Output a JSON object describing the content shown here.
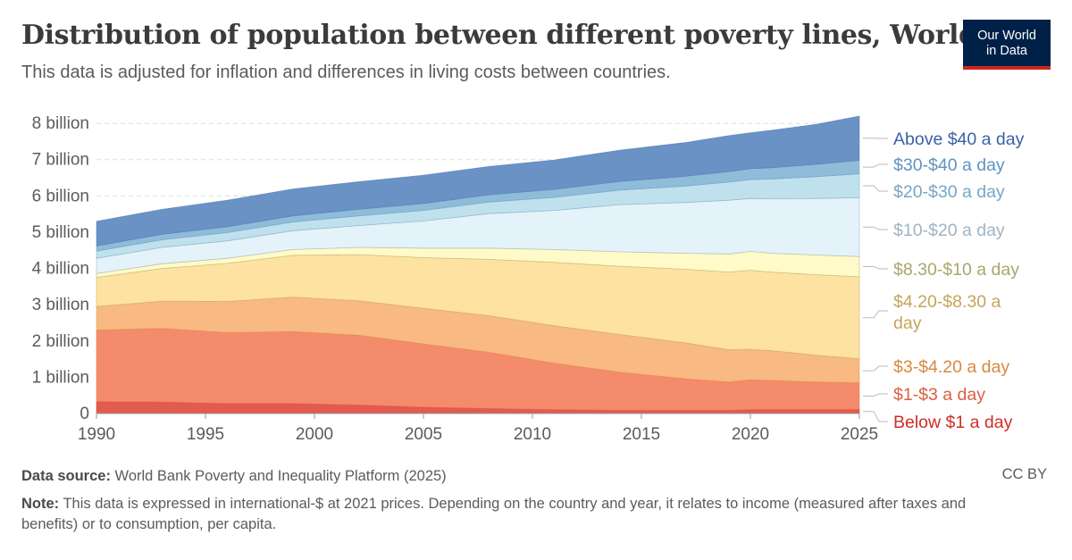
{
  "header": {
    "title": "Distribution of population between different poverty lines, World",
    "subtitle": "This data is adjusted for inflation and differences in living costs between countries."
  },
  "logo": {
    "line1": "Our World",
    "line2": "in Data"
  },
  "footer": {
    "source_label": "Data source:",
    "source_text": " World Bank Poverty and Inequality Platform (2025)",
    "license": "CC BY",
    "note_label": "Note:",
    "note_text": " This data is expressed in international-$ at 2021 prices. Depending on the country and year, it relates to income (measured after taxes and benefits) or to consumption, per capita."
  },
  "chart_data": {
    "type": "area",
    "stacked": true,
    "x": [
      1990,
      1993,
      1996,
      1999,
      2002,
      2005,
      2008,
      2011,
      2014,
      2017,
      2019,
      2020,
      2021,
      2023,
      2025
    ],
    "xticks": [
      1990,
      1995,
      2000,
      2005,
      2010,
      2015,
      2020,
      2025
    ],
    "xlim": [
      1990,
      2025
    ],
    "ylim": [
      0,
      8.2
    ],
    "yticks": [
      {
        "value": 0,
        "label": "0"
      },
      {
        "value": 1,
        "label": "1 billion"
      },
      {
        "value": 2,
        "label": "2 billion"
      },
      {
        "value": 3,
        "label": "3 billion"
      },
      {
        "value": 4,
        "label": "4 billion"
      },
      {
        "value": 5,
        "label": "5 billion"
      },
      {
        "value": 6,
        "label": "6 billion"
      },
      {
        "value": 7,
        "label": "7 billion"
      },
      {
        "value": 8,
        "label": "8 billion"
      }
    ],
    "grid": true,
    "legend_position": "right",
    "series": [
      {
        "name": "Below $1 a day",
        "color": "#d73c2f",
        "fill": "#e35a4e",
        "values": [
          0.33,
          0.32,
          0.28,
          0.28,
          0.24,
          0.18,
          0.14,
          0.11,
          0.09,
          0.09,
          0.09,
          0.11,
          0.11,
          0.11,
          0.11
        ]
      },
      {
        "name": "$1-$3 a day",
        "color": "#e56e56",
        "fill": "#f48b6c",
        "values": [
          1.97,
          2.03,
          1.95,
          1.98,
          1.92,
          1.74,
          1.55,
          1.28,
          1.05,
          0.87,
          0.78,
          0.82,
          0.8,
          0.76,
          0.74
        ]
      },
      {
        "name": "$3-$4.20 a day",
        "color": "#e0913e",
        "fill": "#f8b982",
        "values": [
          0.65,
          0.75,
          0.86,
          0.95,
          0.95,
          0.98,
          1.01,
          1.03,
          1.04,
          0.99,
          0.89,
          0.84,
          0.82,
          0.74,
          0.66
        ]
      },
      {
        "name": "$4.20-$8.30 a day",
        "color": "#c8aa5c",
        "fill": "#fde2a2",
        "values": [
          0.8,
          0.9,
          1.05,
          1.15,
          1.27,
          1.4,
          1.55,
          1.75,
          1.88,
          2.03,
          2.14,
          2.18,
          2.17,
          2.22,
          2.26
        ]
      },
      {
        "name": "$8.30-$10 a day",
        "color": "#b7b072",
        "fill": "#fffac8",
        "values": [
          0.11,
          0.13,
          0.14,
          0.16,
          0.2,
          0.26,
          0.31,
          0.35,
          0.4,
          0.44,
          0.5,
          0.52,
          0.52,
          0.54,
          0.56
        ]
      },
      {
        "name": "$10-$20 a day",
        "color": "#9bb0bd",
        "fill": "#e4f3fa",
        "values": [
          0.42,
          0.45,
          0.48,
          0.52,
          0.6,
          0.75,
          0.95,
          1.08,
          1.3,
          1.4,
          1.48,
          1.46,
          1.5,
          1.56,
          1.62
        ]
      },
      {
        "name": "$20-$30 a day",
        "color": "#7fa7bf",
        "fill": "#bfe1ee",
        "values": [
          0.2,
          0.21,
          0.23,
          0.24,
          0.27,
          0.29,
          0.32,
          0.36,
          0.4,
          0.45,
          0.5,
          0.52,
          0.55,
          0.6,
          0.66
        ]
      },
      {
        "name": "$30-$40 a day",
        "color": "#6b9ac0",
        "fill": "#8fbcd9",
        "values": [
          0.14,
          0.15,
          0.16,
          0.17,
          0.18,
          0.19,
          0.2,
          0.22,
          0.24,
          0.27,
          0.29,
          0.3,
          0.31,
          0.34,
          0.37
        ]
      },
      {
        "name": "Above $40 a day",
        "color": "#4a74b2",
        "fill": "#6a92c5",
        "values": [
          0.68,
          0.69,
          0.73,
          0.74,
          0.76,
          0.78,
          0.78,
          0.81,
          0.86,
          0.93,
          0.99,
          0.99,
          1.03,
          1.1,
          1.22
        ]
      }
    ],
    "legend": [
      {
        "label": "Above $40 a day",
        "color": "#3a62a8"
      },
      {
        "label": "$30-$40 a day",
        "color": "#5f93bf"
      },
      {
        "label": "$20-$30 a day",
        "color": "#76a7c4"
      },
      {
        "label": "$10-$20 a day",
        "color": "#9fb4c2"
      },
      {
        "label": "$8.30-$10 a day",
        "color": "#a9a66c"
      },
      {
        "label": "$4.20-$8.30 a day",
        "color": "#c4a55a"
      },
      {
        "label": "$3-$4.20 a day",
        "color": "#d88a3f"
      },
      {
        "label": "$1-$3 a day",
        "color": "#dc5f42"
      },
      {
        "label": "Below $1 a day",
        "color": "#cf2e24"
      }
    ]
  }
}
